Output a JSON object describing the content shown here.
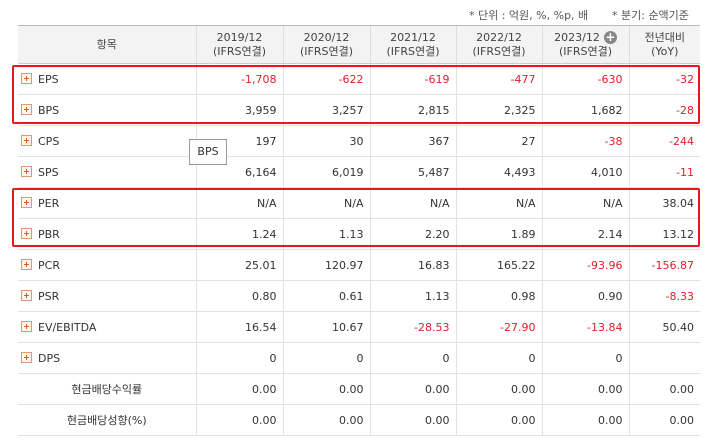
{
  "notes": {
    "unit": "* 단위 : 억원, %, %p, 배",
    "period": "* 분기: 순액기준"
  },
  "table": {
    "item_header": "항목",
    "periods": [
      {
        "line1": "2019/12",
        "line2": "(IFRS연결)"
      },
      {
        "line1": "2020/12",
        "line2": "(IFRS연결)"
      },
      {
        "line1": "2021/12",
        "line2": "(IFRS연결)"
      },
      {
        "line1": "2022/12",
        "line2": "(IFRS연결)"
      },
      {
        "line1": "2023/12",
        "line2": "(IFRS연결)"
      }
    ],
    "yoy_header": {
      "line1": "전년대비",
      "line2": "(YoY)"
    },
    "rows": [
      {
        "label": "EPS",
        "expandable": true,
        "values": [
          "-1,708",
          "-622",
          "-619",
          "-477",
          "-630"
        ],
        "yoy": "-32"
      },
      {
        "label": "BPS",
        "expandable": true,
        "values": [
          "3,959",
          "3,257",
          "2,815",
          "2,325",
          "1,682"
        ],
        "yoy": "-28"
      },
      {
        "label": "CPS",
        "expandable": true,
        "values": [
          "197",
          "30",
          "367",
          "27",
          "-38"
        ],
        "yoy": "-244"
      },
      {
        "label": "SPS",
        "expandable": true,
        "values": [
          "6,164",
          "6,019",
          "5,487",
          "4,493",
          "4,010"
        ],
        "yoy": "-11"
      },
      {
        "label": "PER",
        "expandable": true,
        "values": [
          "N/A",
          "N/A",
          "N/A",
          "N/A",
          "N/A"
        ],
        "yoy": "38.04"
      },
      {
        "label": "PBR",
        "expandable": true,
        "values": [
          "1.24",
          "1.13",
          "2.20",
          "1.89",
          "2.14"
        ],
        "yoy": "13.12"
      },
      {
        "label": "PCR",
        "expandable": true,
        "values": [
          "25.01",
          "120.97",
          "16.83",
          "165.22",
          "-93.96"
        ],
        "yoy": "-156.87"
      },
      {
        "label": "PSR",
        "expandable": true,
        "values": [
          "0.80",
          "0.61",
          "1.13",
          "0.98",
          "0.90"
        ],
        "yoy": "-8.33"
      },
      {
        "label": "EV/EBITDA",
        "expandable": true,
        "values": [
          "16.54",
          "10.67",
          "-28.53",
          "-27.90",
          "-13.84"
        ],
        "yoy": "50.40"
      },
      {
        "label": "DPS",
        "expandable": true,
        "values": [
          "0",
          "0",
          "0",
          "0",
          "0"
        ],
        "yoy": ""
      },
      {
        "label": "현금배당수익률",
        "expandable": false,
        "values": [
          "0.00",
          "0.00",
          "0.00",
          "0.00",
          "0.00"
        ],
        "yoy": "0.00"
      },
      {
        "label": "현금배당성향(%)",
        "expandable": false,
        "values": [
          "0.00",
          "0.00",
          "0.00",
          "0.00",
          "0.00"
        ],
        "yoy": "0.00"
      }
    ]
  },
  "tooltip": {
    "text": "BPS"
  },
  "colors": {
    "negative": "#e0202c",
    "highlight": "#e8161f"
  },
  "icons": {
    "row_toggle": "plus-box-icon",
    "add_period": "plus-circle-icon"
  }
}
